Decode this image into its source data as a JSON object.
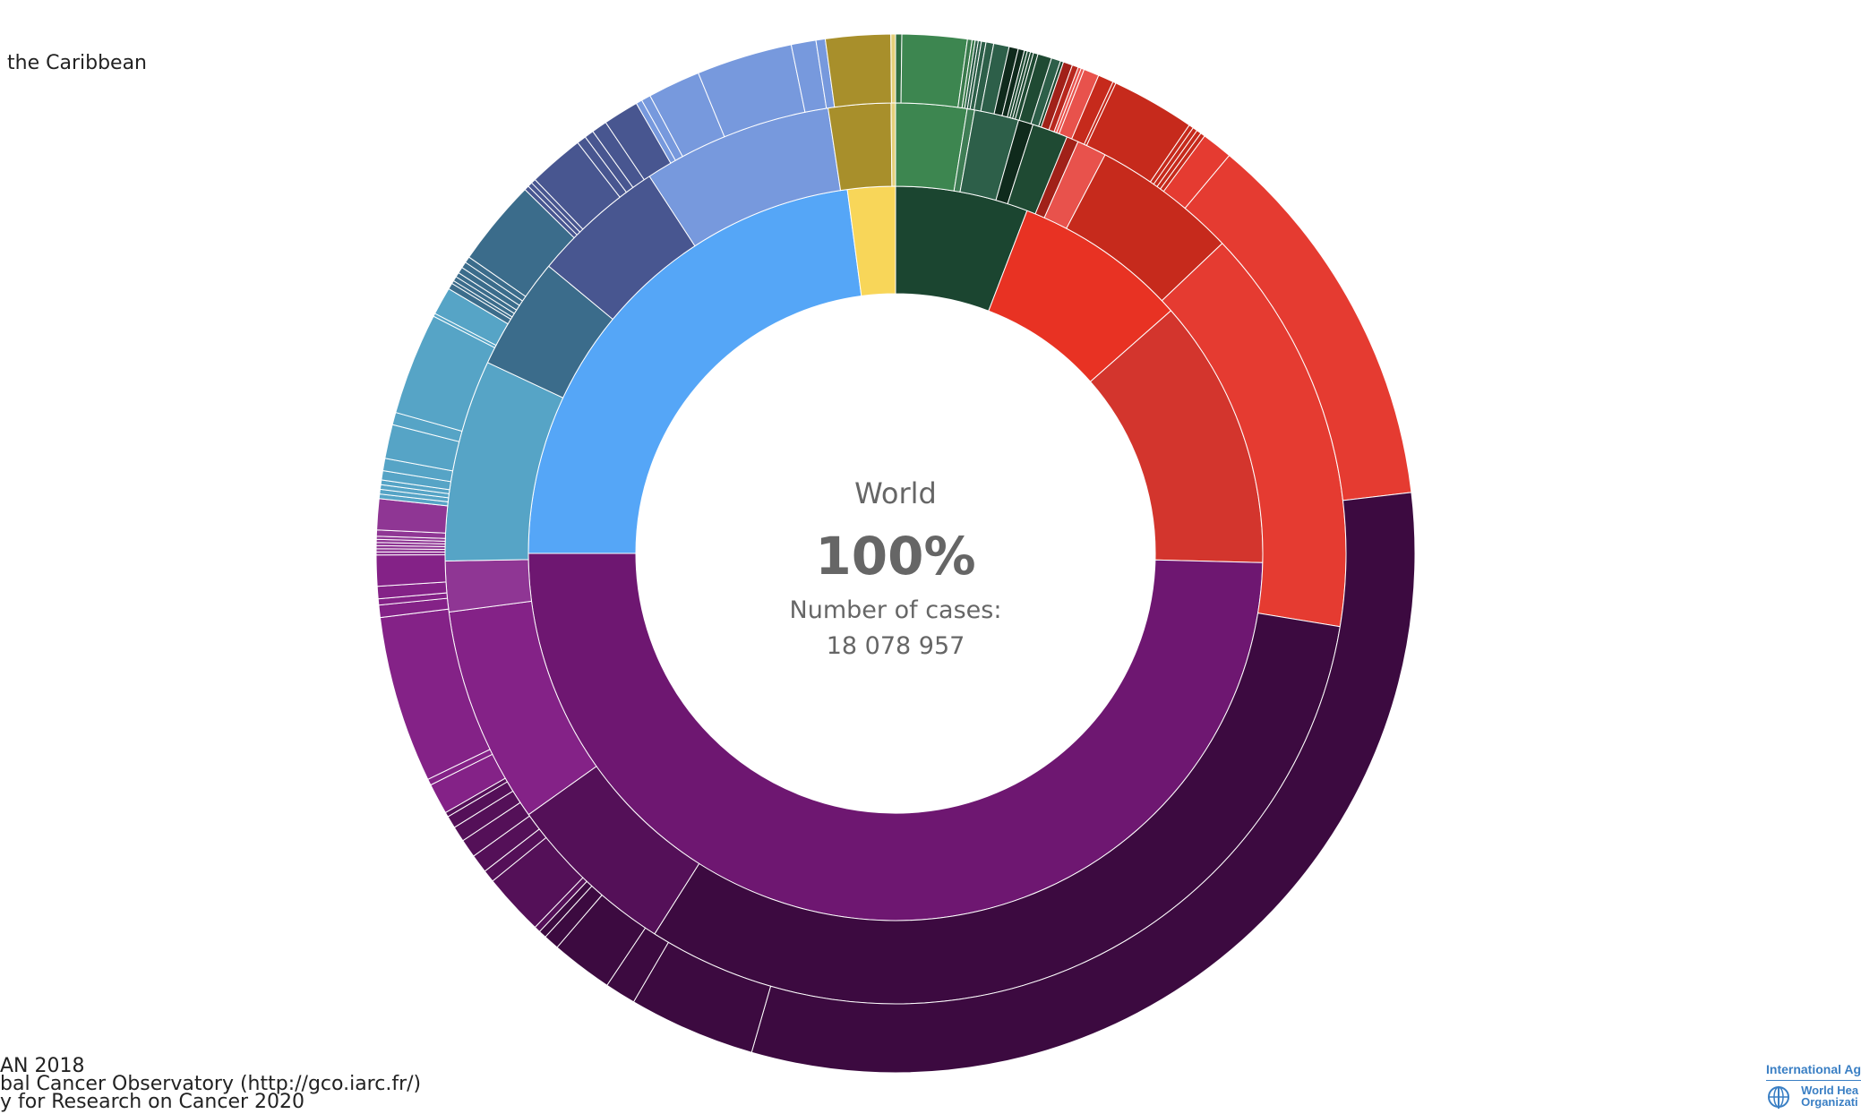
{
  "legend": {
    "title": "the Caribbean"
  },
  "credits": {
    "line1": "AN 2018",
    "line2": "bal Cancer Observatory (http://gco.iarc.fr/)",
    "line3": "y for Research on Cancer 2020"
  },
  "logo": {
    "line1": "International Agency",
    "line2": "World Hea",
    "line3": "Organizati",
    "emblem_icon": "who-emblem-icon"
  },
  "center": {
    "label": "World",
    "percent": "100%",
    "cases_label": "Number of cases:",
    "cases_value": "18 078 957"
  },
  "chart_data": {
    "type": "sunburst",
    "title": "",
    "total_cases": 18078957,
    "direction": "clockwise from top",
    "inner_ring": [
      {
        "share": 0.0583,
        "color": "#1b4530"
      },
      {
        "share": 0.0767,
        "color": "#e83223"
      },
      {
        "share": 0.119,
        "color": "#d3352d"
      },
      {
        "share": 0.496,
        "color": "#6e1771"
      },
      {
        "share": 0.229,
        "color": "#55a6f7"
      },
      {
        "share": 0.021,
        "color": "#f8d659"
      }
    ],
    "middle_ring": [
      {
        "share": 0.0239,
        "color": "#3d8650"
      },
      {
        "share": 0.0025,
        "color": "#3f7d55"
      },
      {
        "share": 0.015,
        "color": "#2d5f49"
      },
      {
        "share": 0.005,
        "color": "#0f2a1c"
      },
      {
        "share": 0.012,
        "color": "#1f4a33"
      },
      {
        "share": 0.004,
        "color": "#a12119"
      },
      {
        "share": 0.01,
        "color": "#e8524c"
      },
      {
        "share": 0.049,
        "color": "#c62a1c"
      },
      {
        "share": 0.138,
        "color": "#e53b31"
      },
      {
        "share": 0.295,
        "color": "#3c0a40"
      },
      {
        "share": 0.058,
        "color": "#541058"
      },
      {
        "share": 0.073,
        "color": "#842287"
      },
      {
        "share": 0.017,
        "color": "#8f3694"
      },
      {
        "share": 0.068,
        "color": "#56a4c6"
      },
      {
        "share": 0.038,
        "color": "#3b6c8b"
      },
      {
        "share": 0.045,
        "color": "#485690"
      },
      {
        "share": 0.064,
        "color": "#7799dd"
      },
      {
        "share": 0.021,
        "color": "#a88f2b"
      },
      {
        "share": 0.0015,
        "color": "#e5d07a"
      }
    ],
    "outer_ring": [
      {
        "share": 0.002,
        "color": "#2f6e41"
      },
      {
        "share": 0.021,
        "color": "#3d8650"
      },
      {
        "share": 0.0015,
        "color": "#3a7a4c"
      },
      {
        "share": 0.001,
        "color": "#3a7a4c"
      },
      {
        "share": 0.001,
        "color": "#2d5f49"
      },
      {
        "share": 0.001,
        "color": "#2d5f49"
      },
      {
        "share": 0.0015,
        "color": "#2d5f49"
      },
      {
        "share": 0.0025,
        "color": "#2d5f49"
      },
      {
        "share": 0.005,
        "color": "#2d5f49"
      },
      {
        "share": 0.003,
        "color": "#0f2a1c"
      },
      {
        "share": 0.002,
        "color": "#0f2a1c"
      },
      {
        "share": 0.001,
        "color": "#1f4a33"
      },
      {
        "share": 0.001,
        "color": "#1f4a33"
      },
      {
        "share": 0.001,
        "color": "#1f4a33"
      },
      {
        "share": 0.0015,
        "color": "#1f4a33"
      },
      {
        "share": 0.0045,
        "color": "#1f4a33"
      },
      {
        "share": 0.003,
        "color": "#2d5f49"
      },
      {
        "share": 0.001,
        "color": "#1f4a33"
      },
      {
        "share": 0.003,
        "color": "#a12119"
      },
      {
        "share": 0.002,
        "color": "#b8271d"
      },
      {
        "share": 0.001,
        "color": "#e8524c"
      },
      {
        "share": 0.001,
        "color": "#e8524c"
      },
      {
        "share": 0.005,
        "color": "#e8524c"
      },
      {
        "share": 0.005,
        "color": "#c62a1c"
      },
      {
        "share": 0.001,
        "color": "#c62a1c"
      },
      {
        "share": 0.027,
        "color": "#c62a1c"
      },
      {
        "share": 0.0015,
        "color": "#c62a1c"
      },
      {
        "share": 0.0015,
        "color": "#c62a1c"
      },
      {
        "share": 0.0015,
        "color": "#c62a1c"
      },
      {
        "share": 0.0015,
        "color": "#c62a1c"
      },
      {
        "share": 0.01,
        "color": "#e53b31"
      },
      {
        "share": 0.125,
        "color": "#e53b31"
      },
      {
        "share": 0.326,
        "color": "#3c0a40"
      },
      {
        "share": 0.041,
        "color": "#3c0a40"
      },
      {
        "share": 0.01,
        "color": "#3c0a40"
      },
      {
        "share": 0.02,
        "color": "#3c0a40"
      },
      {
        "share": 0.005,
        "color": "#3c0a40"
      },
      {
        "share": 0.0025,
        "color": "#3c0a40"
      },
      {
        "share": 0.002,
        "color": "#541058"
      },
      {
        "share": 0.02,
        "color": "#541058"
      },
      {
        "share": 0.004,
        "color": "#541058"
      },
      {
        "share": 0.006,
        "color": "#541058"
      },
      {
        "share": 0.006,
        "color": "#541058"
      },
      {
        "share": 0.005,
        "color": "#541058"
      },
      {
        "share": 0.004,
        "color": "#541058"
      },
      {
        "share": 0.0015,
        "color": "#541058"
      },
      {
        "share": 0.01,
        "color": "#842287"
      },
      {
        "share": 0.002,
        "color": "#842287"
      },
      {
        "share": 0.054,
        "color": "#842287"
      },
      {
        "share": 0.004,
        "color": "#842287"
      },
      {
        "share": 0.002,
        "color": "#842287"
      },
      {
        "share": 0.004,
        "color": "#842287"
      },
      {
        "share": 0.01,
        "color": "#842287"
      },
      {
        "share": 0.001,
        "color": "#8f3694"
      },
      {
        "share": 0.001,
        "color": "#8f3694"
      },
      {
        "share": 0.001,
        "color": "#8f3694"
      },
      {
        "share": 0.001,
        "color": "#8f3694"
      },
      {
        "share": 0.001,
        "color": "#8f3694"
      },
      {
        "share": 0.001,
        "color": "#8f3694"
      },
      {
        "share": 0.002,
        "color": "#8f3694"
      },
      {
        "share": 0.01,
        "color": "#8f3694"
      },
      {
        "share": 0.0015,
        "color": "#56a4c6"
      },
      {
        "share": 0.0015,
        "color": "#56a4c6"
      },
      {
        "share": 0.0015,
        "color": "#56a4c6"
      },
      {
        "share": 0.0015,
        "color": "#56a4c6"
      },
      {
        "share": 0.003,
        "color": "#56a4c6"
      },
      {
        "share": 0.004,
        "color": "#56a4c6"
      },
      {
        "share": 0.011,
        "color": "#56a4c6"
      },
      {
        "share": 0.004,
        "color": "#56a4c6"
      },
      {
        "share": 0.033,
        "color": "#56a4c6"
      },
      {
        "share": 0.001,
        "color": "#56a4c6"
      },
      {
        "share": 0.009,
        "color": "#56a4c6"
      },
      {
        "share": 0.002,
        "color": "#3b6c8b"
      },
      {
        "share": 0.001,
        "color": "#3b6c8b"
      },
      {
        "share": 0.0015,
        "color": "#3b6c8b"
      },
      {
        "share": 0.0015,
        "color": "#3b6c8b"
      },
      {
        "share": 0.002,
        "color": "#3b6c8b"
      },
      {
        "share": 0.002,
        "color": "#3b6c8b"
      },
      {
        "share": 0.002,
        "color": "#3b6c8b"
      },
      {
        "share": 0.028,
        "color": "#3b6c8b"
      },
      {
        "share": 0.0015,
        "color": "#485690"
      },
      {
        "share": 0.0015,
        "color": "#485690"
      },
      {
        "share": 0.0015,
        "color": "#485690"
      },
      {
        "share": 0.018,
        "color": "#485690"
      },
      {
        "share": 0.003,
        "color": "#485690"
      },
      {
        "share": 0.003,
        "color": "#485690"
      },
      {
        "share": 0.005,
        "color": "#485690"
      },
      {
        "share": 0.0115,
        "color": "#485690"
      },
      {
        "share": 0.002,
        "color": "#7799dd"
      },
      {
        "share": 0.003,
        "color": "#7799dd"
      },
      {
        "share": 0.017,
        "color": "#7799dd"
      },
      {
        "share": 0.031,
        "color": "#7799dd"
      },
      {
        "share": 0.008,
        "color": "#7799dd"
      },
      {
        "share": 0.003,
        "color": "#7799dd"
      },
      {
        "share": 0.021,
        "color": "#a88f2b"
      },
      {
        "share": 0.0015,
        "color": "#e5d07a"
      }
    ]
  }
}
